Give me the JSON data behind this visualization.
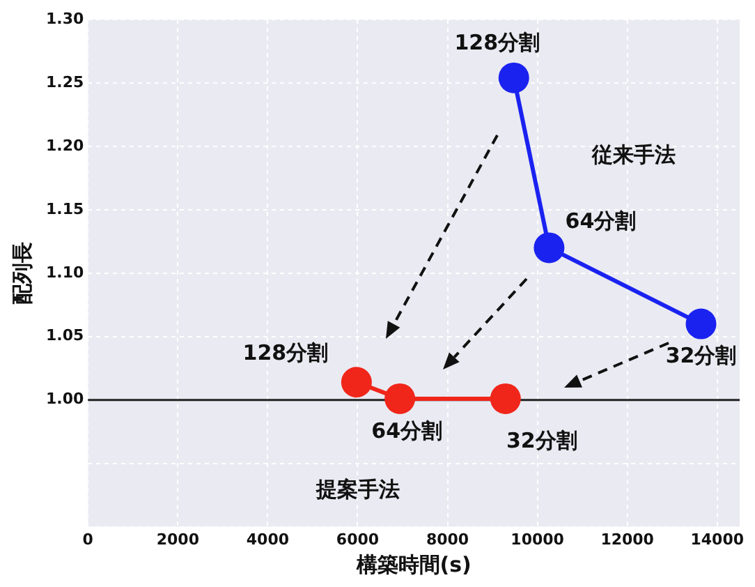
{
  "chart_data": {
    "type": "line",
    "xlabel": "構築時間(s)",
    "ylabel": "配列長",
    "xlim": [
      0,
      14500
    ],
    "xticks": [
      0,
      2000,
      4000,
      6000,
      8000,
      10000,
      12000,
      14000
    ],
    "ylim": [
      0.9,
      1.3
    ],
    "yticks": [
      {
        "value": 0.9,
        "label": null
      },
      {
        "value": 0.95,
        "label": null
      },
      {
        "value": 1.0,
        "label": "1.00"
      },
      {
        "value": 1.05,
        "label": "1.05"
      },
      {
        "value": 1.1,
        "label": "1.10"
      },
      {
        "value": 1.15,
        "label": "1.15"
      },
      {
        "value": 1.2,
        "label": "1.20"
      },
      {
        "value": 1.25,
        "label": "1.25"
      },
      {
        "value": 1.3,
        "label": "1.30"
      }
    ],
    "series": [
      {
        "color": "#1a22f0",
        "x": [
          9475,
          10260,
          13640
        ],
        "values": [
          1.254,
          1.12,
          1.06
        ]
      },
      {
        "color": "#f0261a",
        "x": [
          5975,
          6940,
          9290
        ],
        "values": [
          1.014,
          1.001,
          1.001
        ]
      }
    ],
    "ref_lines": [
      {
        "axis": "y",
        "value": 1.0,
        "color": "#222222"
      }
    ],
    "annotations": [
      {
        "text": "128分割",
        "x": 9475,
        "y": 1.254
      },
      "従来手法",
      {
        "text": "64分割",
        "x": 10260,
        "y": 1.12
      },
      {
        "text": "32分割",
        "x": 13640,
        "y": 1.06
      },
      {
        "text": "128分割",
        "x": 5975,
        "y": 1.014
      },
      {
        "text": "64分割",
        "x": 6940,
        "y": 1.001
      },
      {
        "text": "32分割",
        "x": 9290,
        "y": 1.001
      },
      "提案手法"
    ],
    "grid": true,
    "marker": "circle",
    "line_style": "solid",
    "legend": false
  }
}
